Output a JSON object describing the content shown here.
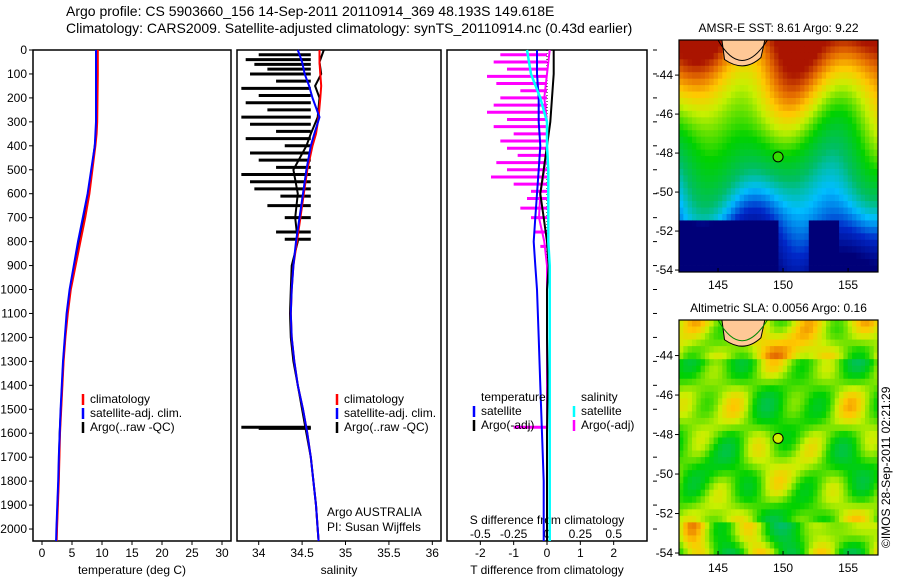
{
  "header": {
    "line1": "Argo profile: CS 5903660_156 14-Sep-2011 20110914_369 48.193S 149.618E",
    "line2": "Climatology: CARS2009. Satellite-adjusted climatology: synTS_20110914.nc (0.43d earlier)"
  },
  "colors": {
    "climatology": "#ff0000",
    "satellite": "#0000ff",
    "argo": "#000000",
    "sal_satellite": "#00ffff",
    "sal_argo": "#ff00ff"
  },
  "chart_data": [
    {
      "type": "line",
      "name": "temperature",
      "xlabel": "temperature (deg C)",
      "xticks": [
        0,
        5,
        10,
        15,
        20,
        25,
        30
      ],
      "xlim": [
        -1.5,
        31.5
      ],
      "ylim": [
        0,
        2050
      ],
      "yticks": [
        0,
        100,
        200,
        300,
        400,
        500,
        600,
        700,
        800,
        900,
        1000,
        1100,
        1200,
        1300,
        1400,
        1500,
        1600,
        1700,
        1800,
        1900,
        2000
      ],
      "legend": [
        "climatology",
        "satellite-adj. clim.",
        "Argo(..raw -QC)"
      ],
      "depth": [
        0,
        100,
        200,
        300,
        350,
        400,
        500,
        600,
        700,
        800,
        900,
        1000,
        1100,
        1200,
        1300,
        1400,
        1500,
        1600,
        1700,
        1800,
        1900,
        2000,
        2050
      ],
      "series": [
        {
          "name": "climatology",
          "values": [
            9.3,
            9.3,
            9.25,
            9.2,
            9.1,
            8.9,
            8.4,
            7.9,
            7.2,
            6.4,
            5.6,
            4.8,
            4.3,
            3.9,
            3.6,
            3.4,
            3.2,
            3.0,
            2.9,
            2.8,
            2.65,
            2.5,
            2.45
          ]
        },
        {
          "name": "satellite-adj. clim.",
          "values": [
            9.0,
            9.0,
            9.0,
            9.0,
            8.9,
            8.8,
            8.2,
            7.6,
            6.8,
            6.0,
            5.3,
            4.6,
            4.1,
            3.8,
            3.5,
            3.3,
            3.1,
            2.95,
            2.8,
            2.7,
            2.55,
            2.4,
            2.35
          ]
        },
        {
          "name": "Argo(..raw -QC)",
          "values": [
            9.2,
            9.2,
            9.15,
            9.1,
            9.0,
            8.8,
            8.3,
            7.7,
            7.0,
            6.2,
            5.4,
            4.7,
            4.2,
            3.85,
            3.55,
            3.35,
            3.15,
            2.95,
            2.85,
            2.75,
            2.6,
            2.45,
            2.4
          ]
        }
      ]
    },
    {
      "type": "line",
      "name": "salinity",
      "xlabel": "salinity",
      "xticks": [
        34,
        34.5,
        35,
        35.5,
        36
      ],
      "xticklabels": [
        "34",
        "34.5",
        "35",
        "35.5",
        "36"
      ],
      "xlim": [
        33.75,
        36.1
      ],
      "ylim": [
        0,
        2050
      ],
      "legend": [
        "climatology",
        "satellite-adj. clim.",
        "Argo(..raw -QC)"
      ],
      "annotation": [
        "Argo AUSTRALIA",
        "PI: Susan Wijffels"
      ],
      "depth": [
        0,
        50,
        100,
        150,
        200,
        280,
        350,
        400,
        500,
        600,
        700,
        800,
        900,
        1000,
        1100,
        1200,
        1300,
        1400,
        1500,
        1600,
        1700,
        1800,
        1900,
        2000,
        2050
      ],
      "series": [
        {
          "name": "climatology",
          "values": [
            34.7,
            34.7,
            34.71,
            34.72,
            34.71,
            34.69,
            34.66,
            34.62,
            34.56,
            34.52,
            34.48,
            34.44,
            34.4,
            34.38,
            34.37,
            34.38,
            34.41,
            34.45,
            34.51,
            34.56,
            34.6,
            34.63,
            34.66,
            34.68,
            34.69
          ]
        },
        {
          "name": "satellite-adj. clim.",
          "values": [
            34.45,
            34.5,
            34.53,
            34.58,
            34.62,
            34.7,
            34.64,
            34.6,
            34.55,
            34.51,
            34.47,
            34.43,
            34.4,
            34.38,
            34.37,
            34.38,
            34.41,
            34.45,
            34.51,
            34.56,
            34.6,
            34.63,
            34.66,
            34.68,
            34.69
          ]
        },
        {
          "name": "Argo(..raw -QC)",
          "values": [
            34.75,
            34.7,
            34.72,
            34.65,
            34.7,
            34.68,
            34.6,
            34.55,
            34.4,
            34.45,
            34.42,
            34.45,
            34.38,
            34.37,
            34.36,
            34.37,
            34.4,
            34.45,
            34.5,
            34.55,
            34.6,
            34.63,
            34.66,
            34.68,
            34.69
          ]
        }
      ],
      "argo_spikes": [
        [
          20,
          34.0
        ],
        [
          40,
          33.85
        ],
        [
          60,
          33.95
        ],
        [
          80,
          34.1
        ],
        [
          100,
          33.9
        ],
        [
          130,
          34.2
        ],
        [
          160,
          33.8
        ],
        [
          190,
          34.0
        ],
        [
          220,
          33.85
        ],
        [
          250,
          34.1
        ],
        [
          280,
          33.8
        ],
        [
          310,
          33.9
        ],
        [
          340,
          34.2
        ],
        [
          370,
          33.85
        ],
        [
          400,
          34.3
        ],
        [
          430,
          33.9
        ],
        [
          460,
          34.0
        ],
        [
          490,
          34.2
        ],
        [
          520,
          33.8
        ],
        [
          550,
          33.9
        ],
        [
          580,
          33.95
        ],
        [
          610,
          34.25
        ],
        [
          650,
          34.1
        ],
        [
          700,
          34.3
        ],
        [
          760,
          34.2
        ],
        [
          790,
          34.3
        ],
        [
          1575,
          33.8
        ],
        [
          1580,
          34.0
        ]
      ]
    },
    {
      "type": "line",
      "name": "difference",
      "xlabel": "T difference from climatology",
      "xlabel_top": "S difference from climatology",
      "xticks": [
        -2,
        -1,
        0,
        1,
        2
      ],
      "xlim": [
        -3,
        3
      ],
      "sticks": [
        -0.5,
        -0.25,
        0,
        0.25,
        0.5
      ],
      "sticklabels": [
        "-0.5",
        "-0.25",
        "0",
        "0.25",
        "0.5"
      ],
      "slim": [
        -0.75,
        0.75
      ],
      "legend": {
        "temperature": "temperature",
        "salinity": "salinity",
        "t_sat": "satellite",
        "t_argo": "Argo(-adj)",
        "s_sat": "satellite",
        "s_argo": "Argo(-adj)"
      },
      "depth": [
        0,
        100,
        200,
        300,
        400,
        500,
        600,
        700,
        800,
        900,
        1000,
        1200,
        1400,
        1600,
        1800,
        2000,
        2050
      ],
      "series": [
        {
          "name": "T satellite",
          "values": [
            -0.3,
            -0.3,
            -0.25,
            -0.25,
            -0.2,
            -0.25,
            -0.3,
            -0.35,
            -0.4,
            -0.35,
            -0.3,
            -0.25,
            -0.2,
            -0.15,
            -0.1,
            -0.1,
            -0.1
          ]
        },
        {
          "name": "T Argo(-adj)",
          "values": [
            0.2,
            0.2,
            0.15,
            0.1,
            0.0,
            -0.1,
            -0.2,
            -0.1,
            0.0,
            0.05,
            0.0,
            0.0,
            0.02,
            0.0,
            0.0,
            0.0,
            0.0
          ]
        },
        {
          "name": "S satellite",
          "values": [
            -0.15,
            -0.12,
            -0.05,
            0.0,
            0.0,
            0.01,
            0.01,
            0.01,
            0.01,
            0.02,
            0.02,
            0.02,
            0.02,
            0.02,
            0.02,
            0.02,
            0.02
          ]
        },
        {
          "name": "S Argo(-adj)",
          "values": [
            0.02,
            0.0,
            -0.02,
            0.0,
            0.0,
            -0.02,
            -0.05,
            -0.06,
            -0.02,
            0.0,
            0.0,
            0.0,
            0.0,
            0.0,
            0.0,
            0.0,
            0.0
          ]
        }
      ],
      "s_argo_spikes": [
        [
          20,
          -0.35
        ],
        [
          50,
          -0.4
        ],
        [
          80,
          -0.3
        ],
        [
          110,
          -0.45
        ],
        [
          140,
          -0.38
        ],
        [
          170,
          -0.2
        ],
        [
          200,
          -0.35
        ],
        [
          230,
          -0.4
        ],
        [
          260,
          -0.45
        ],
        [
          290,
          -0.3
        ],
        [
          320,
          -0.4
        ],
        [
          350,
          -0.25
        ],
        [
          380,
          -0.35
        ],
        [
          410,
          -0.3
        ],
        [
          440,
          -0.22
        ],
        [
          470,
          -0.38
        ],
        [
          500,
          -0.3
        ],
        [
          530,
          -0.42
        ],
        [
          560,
          -0.25
        ],
        [
          590,
          -0.12
        ],
        [
          620,
          -0.15
        ],
        [
          660,
          -0.2
        ],
        [
          700,
          -0.12
        ],
        [
          760,
          -0.1
        ],
        [
          820,
          -0.05
        ],
        [
          1575,
          -0.25
        ]
      ]
    },
    {
      "type": "heatmap",
      "name": "sst-map",
      "title": "AMSR-E SST: 8.61 Argo: 9.22",
      "xticks": [
        145,
        150,
        155
      ],
      "yticks": [
        -44,
        -46,
        -48,
        -50,
        -52,
        -54
      ],
      "xlim": [
        142,
        157.3
      ],
      "ylim": [
        -54.1,
        -42.2
      ],
      "marker": {
        "lon": 149.618,
        "lat": -48.193,
        "color": "#33dd00"
      }
    },
    {
      "type": "heatmap",
      "name": "sla-map",
      "title": "Altimetric SLA: 0.0056 Argo: 0.16",
      "xticks": [
        145,
        150,
        155
      ],
      "yticks": [
        -44,
        -46,
        -48,
        -50,
        -52,
        -54
      ],
      "xlim": [
        142,
        157.3
      ],
      "ylim": [
        -54.1,
        -42.2
      ],
      "marker": {
        "lon": 149.618,
        "lat": -48.193,
        "color": "#ccee00"
      }
    }
  ],
  "footer": {
    "credit": "©IMOS 28-Sep-2011 02:21:29"
  }
}
